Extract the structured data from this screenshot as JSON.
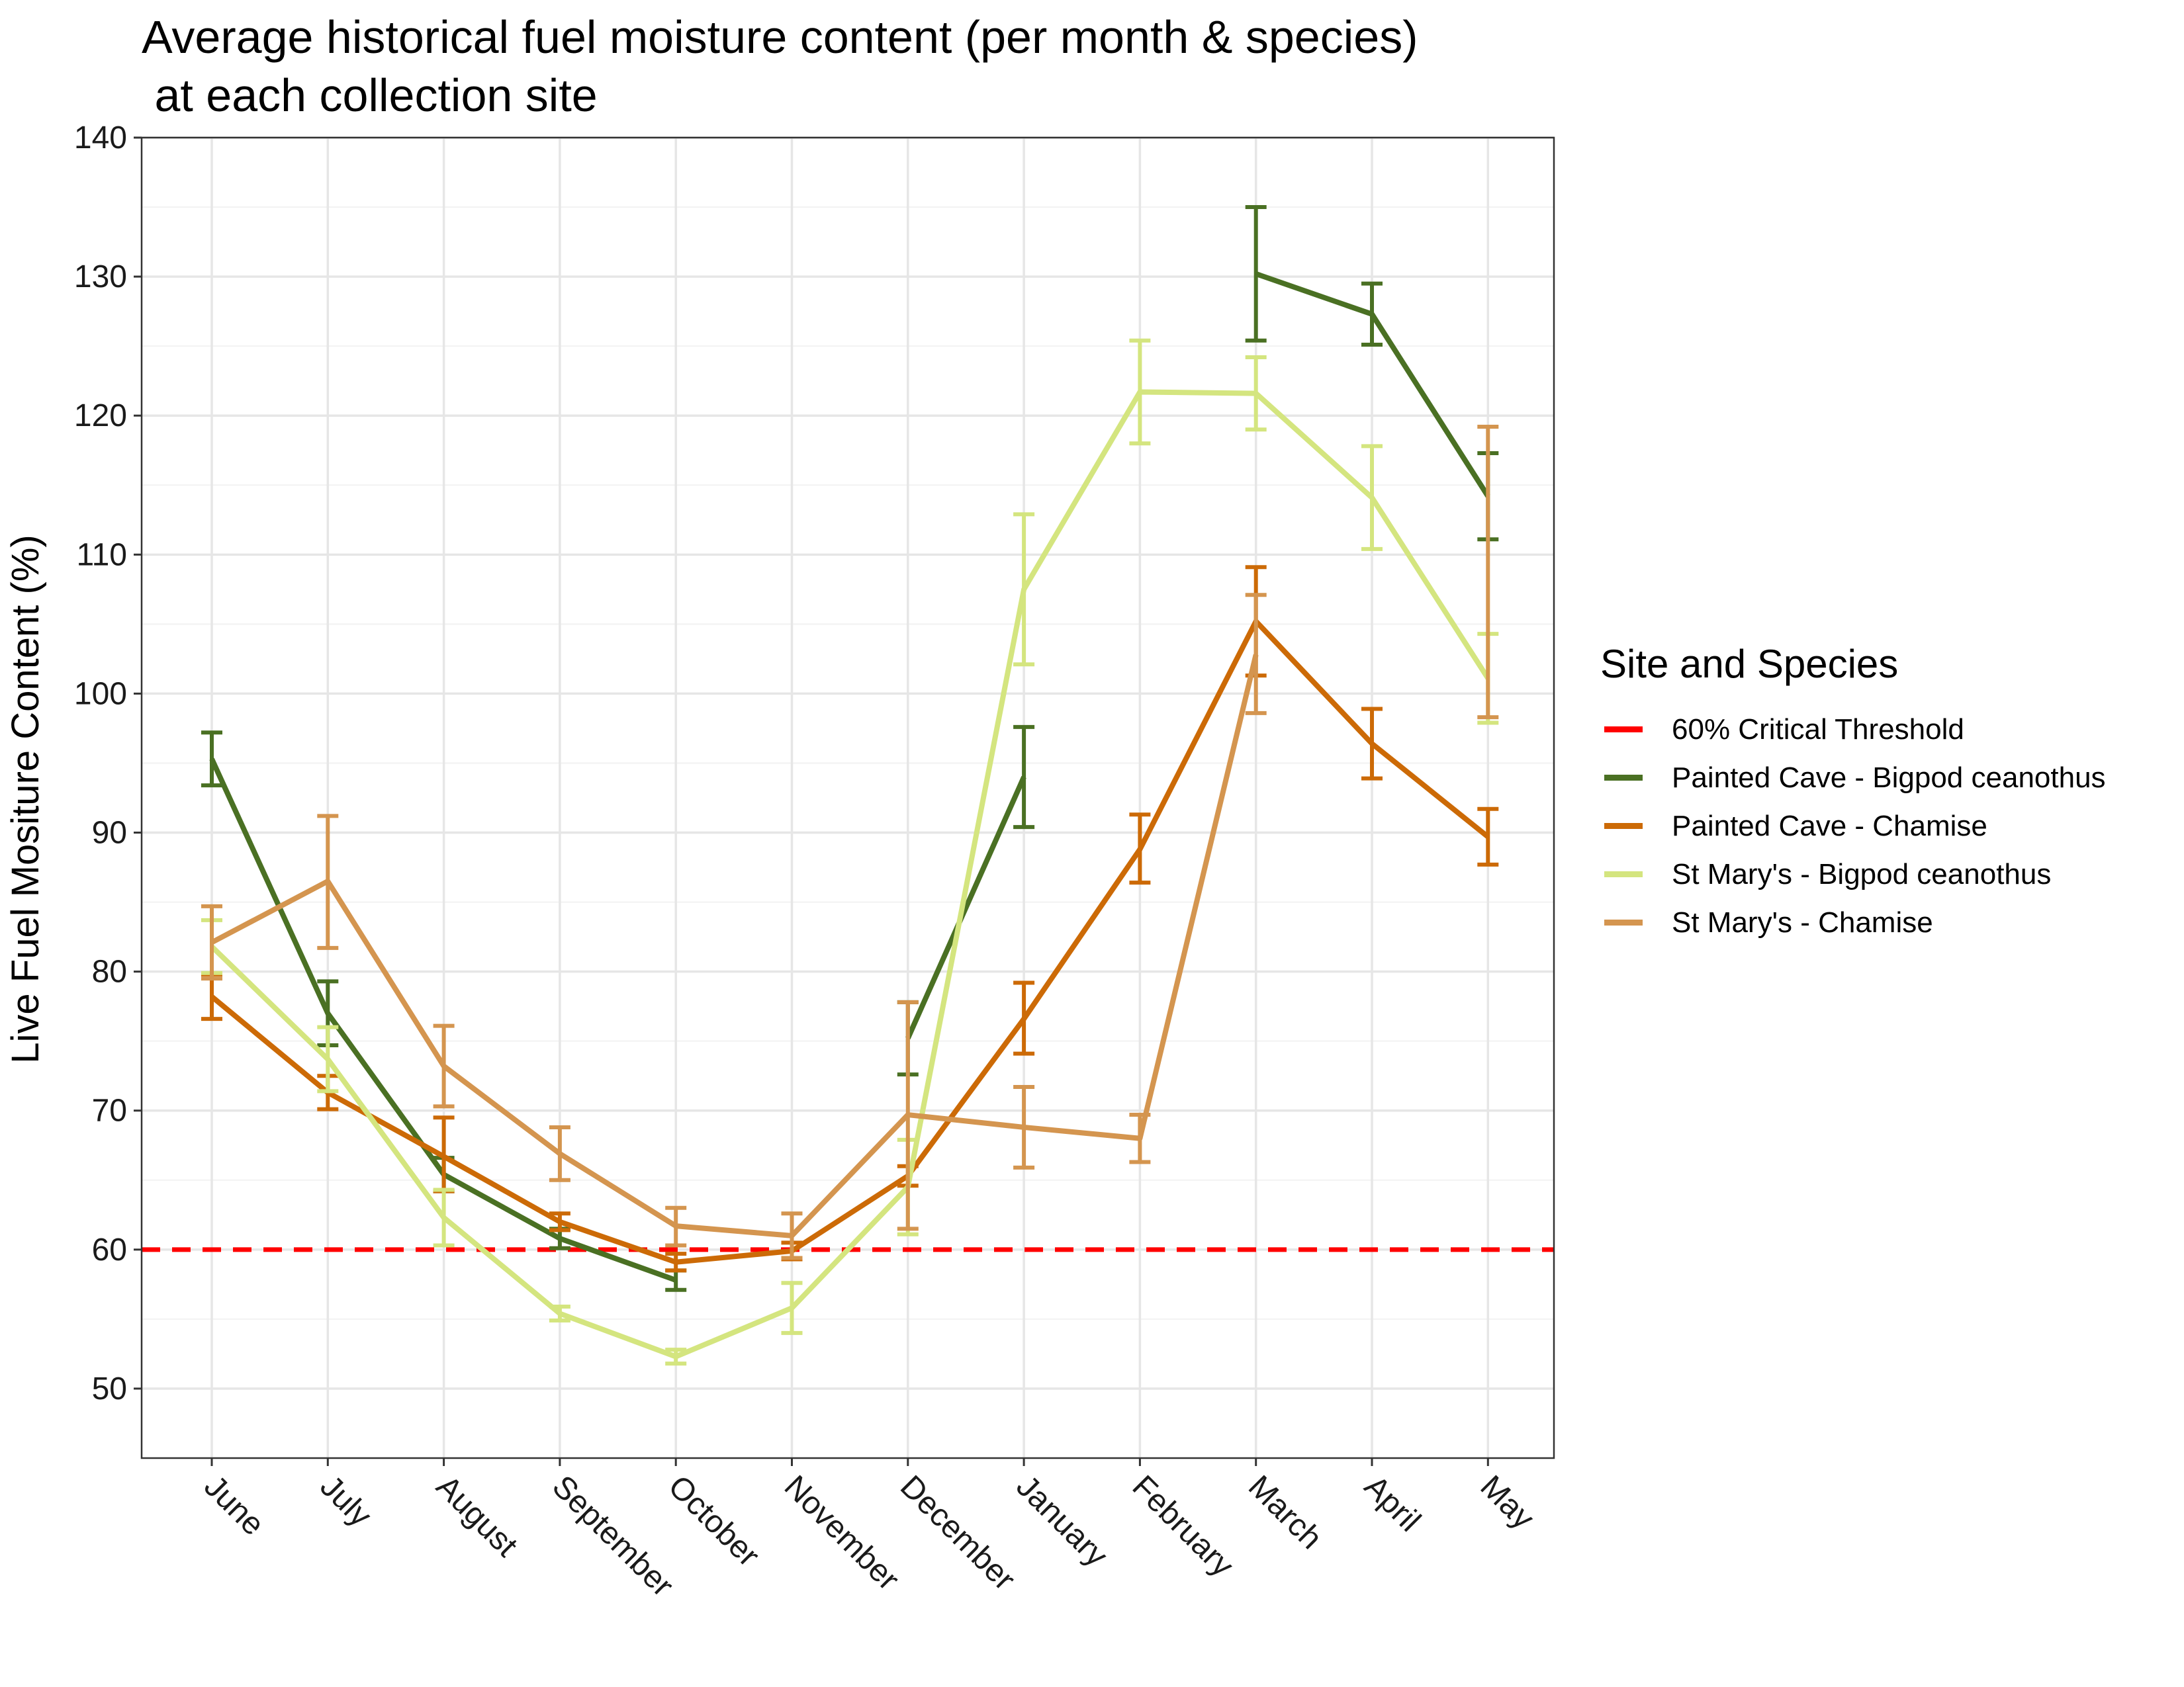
{
  "chart_data": {
    "type": "line",
    "title": "Average historical fuel moisture content (per month & species)\n at each collection site",
    "xlabel": "",
    "ylabel": "Live Fuel Mositure Content (%)",
    "categories": [
      "June",
      "July",
      "August",
      "September",
      "October",
      "November",
      "December",
      "January",
      "February",
      "March",
      "April",
      "May"
    ],
    "ylim": [
      45,
      140
    ],
    "yticks": [
      50,
      60,
      70,
      80,
      90,
      100,
      110,
      120,
      130,
      140
    ],
    "grid": true,
    "legend": {
      "title": "Site and Species",
      "position": "right",
      "entries": [
        "60% Critical Threshold",
        "Painted Cave - Bigpod ceanothus",
        "Painted Cave - Chamise",
        "St Mary's - Bigpod ceanothus",
        "St Mary's - Chamise"
      ]
    },
    "threshold": {
      "name": "60% Critical Threshold",
      "value": 60,
      "color": "#ff0000",
      "style": "dashed"
    },
    "series": [
      {
        "name": "Painted Cave - Bigpod ceanothus",
        "color": "#4a7023",
        "values": [
          95.3,
          77.0,
          65.4,
          60.8,
          57.8,
          null,
          75.2,
          94.0,
          null,
          130.2,
          127.3,
          114.2
        ],
        "error_low": [
          93.4,
          74.7,
          64.2,
          60.1,
          57.1,
          null,
          72.6,
          90.4,
          null,
          125.4,
          125.1,
          111.1
        ],
        "error_high": [
          97.2,
          79.3,
          66.6,
          61.5,
          58.5,
          null,
          77.8,
          97.6,
          null,
          135.0,
          129.5,
          117.3
        ]
      },
      {
        "name": "Painted Cave - Chamise",
        "color": "#cc6a06",
        "values": [
          78.2,
          71.3,
          66.7,
          62.0,
          59.1,
          59.9,
          65.3,
          76.6,
          88.8,
          105.2,
          96.4,
          89.7
        ],
        "error_low": [
          76.6,
          70.1,
          64.2,
          61.4,
          58.5,
          59.3,
          64.6,
          74.1,
          86.4,
          101.3,
          93.9,
          87.7
        ],
        "error_high": [
          79.8,
          72.5,
          69.5,
          62.6,
          59.7,
          60.5,
          66.0,
          79.2,
          91.3,
          109.1,
          98.9,
          91.7
        ]
      },
      {
        "name": "St Mary's - Bigpod ceanothus",
        "color": "#d4e57f",
        "values": [
          81.8,
          73.7,
          62.3,
          55.4,
          52.3,
          55.8,
          64.5,
          107.5,
          121.7,
          121.6,
          114.1,
          101.1
        ],
        "error_low": [
          79.9,
          71.4,
          60.3,
          54.9,
          51.8,
          54.0,
          61.1,
          102.1,
          118.0,
          119.0,
          110.4,
          97.9
        ],
        "error_high": [
          83.7,
          76.0,
          64.3,
          55.9,
          52.8,
          57.6,
          67.9,
          112.9,
          125.4,
          124.2,
          117.8,
          104.3
        ]
      },
      {
        "name": "St Mary's - Chamise",
        "color": "#d4954f",
        "values": [
          82.1,
          86.5,
          73.2,
          66.9,
          61.7,
          61.0,
          69.7,
          68.8,
          68.0,
          102.8,
          null,
          108.5
        ],
        "error_low": [
          79.5,
          81.7,
          70.3,
          65.0,
          60.3,
          59.4,
          61.5,
          65.9,
          66.3,
          98.6,
          null,
          98.3
        ],
        "error_high": [
          84.7,
          91.2,
          76.1,
          68.8,
          63.0,
          62.6,
          77.8,
          71.7,
          69.7,
          107.1,
          null,
          119.2
        ]
      }
    ]
  }
}
